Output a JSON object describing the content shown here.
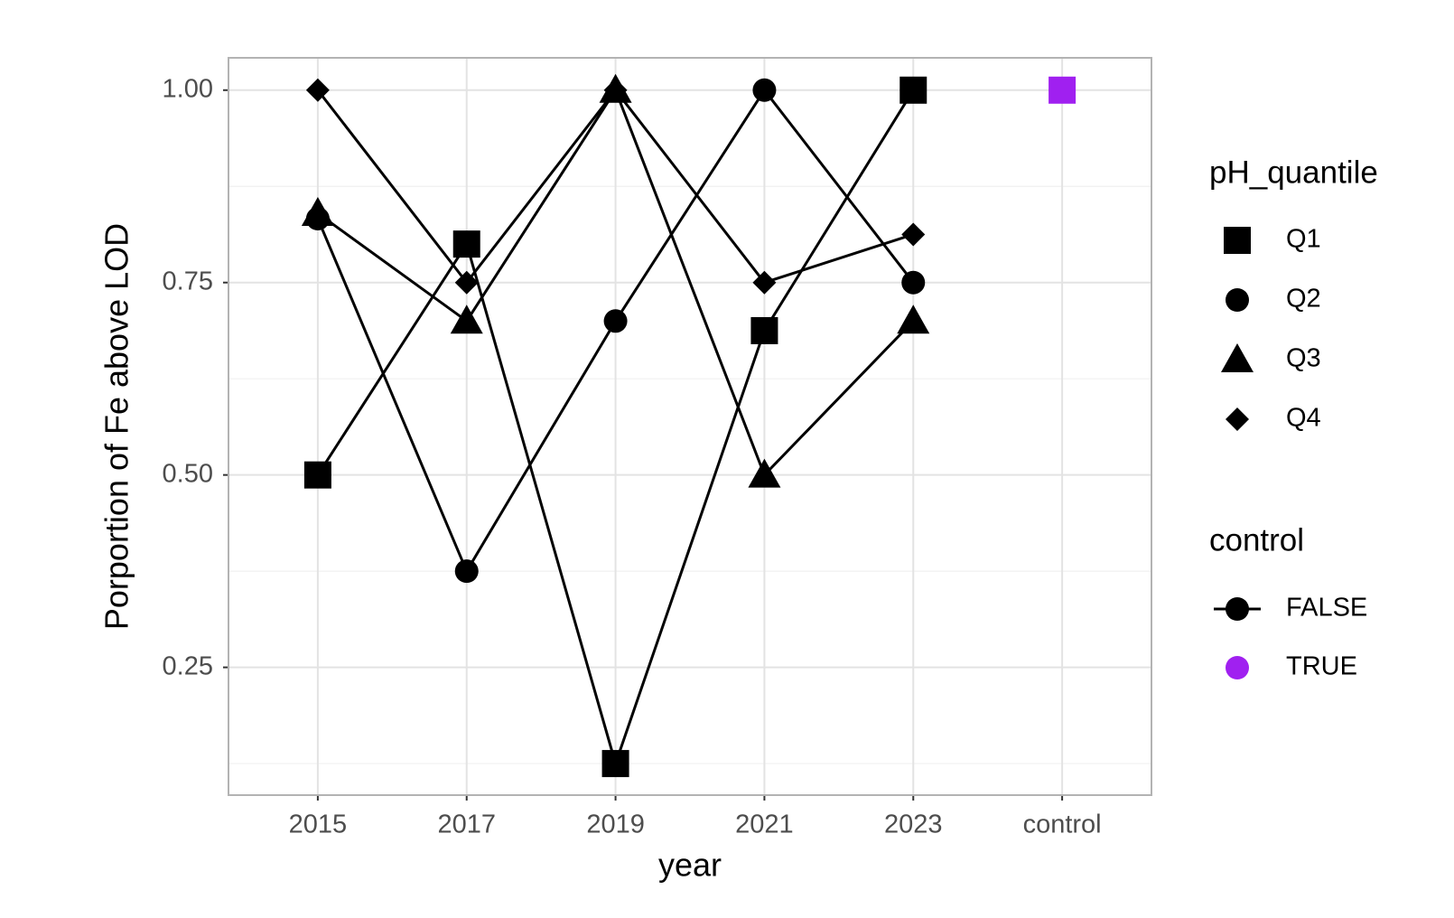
{
  "chart_data": {
    "type": "line",
    "xlabel": "year",
    "ylabel": "Porportion of Fe above LOD",
    "categories": [
      "2015",
      "2017",
      "2019",
      "2021",
      "2023",
      "control"
    ],
    "ylim": [
      0.084,
      1.042
    ],
    "yticks": [
      0.25,
      {
        "value": 0.5,
        "label": "0.50"
      },
      0.75,
      {
        "value": 1.0,
        "label": "1.00"
      }
    ],
    "y_minor_ticks": [
      0.125,
      0.375,
      0.625,
      0.875
    ],
    "grid": true,
    "legend_title": "pH_quantile",
    "series": [
      {
        "name": "Q1",
        "shape": "square",
        "color": "#000000",
        "values": [
          0.5,
          0.8,
          0.125,
          0.6875,
          1.0,
          null
        ]
      },
      {
        "name": "Q2",
        "shape": "circle",
        "color": "#000000",
        "values": [
          0.833,
          0.375,
          0.7,
          1.0,
          0.75,
          null
        ]
      },
      {
        "name": "Q3",
        "shape": "triangle",
        "color": "#000000",
        "values": [
          0.84,
          0.7,
          1.0,
          0.5,
          0.7,
          null
        ]
      },
      {
        "name": "Q4",
        "shape": "diamond",
        "color": "#000000",
        "values": [
          1.0,
          0.75,
          1.0,
          0.75,
          0.8125,
          null
        ]
      }
    ],
    "control": {
      "title": "control",
      "shape": "square",
      "levels": [
        {
          "name": "FALSE",
          "color": "#000000"
        },
        {
          "name": "TRUE",
          "color": "#a020f0"
        }
      ],
      "values": [
        null,
        null,
        null,
        null,
        null,
        1.0
      ]
    }
  }
}
